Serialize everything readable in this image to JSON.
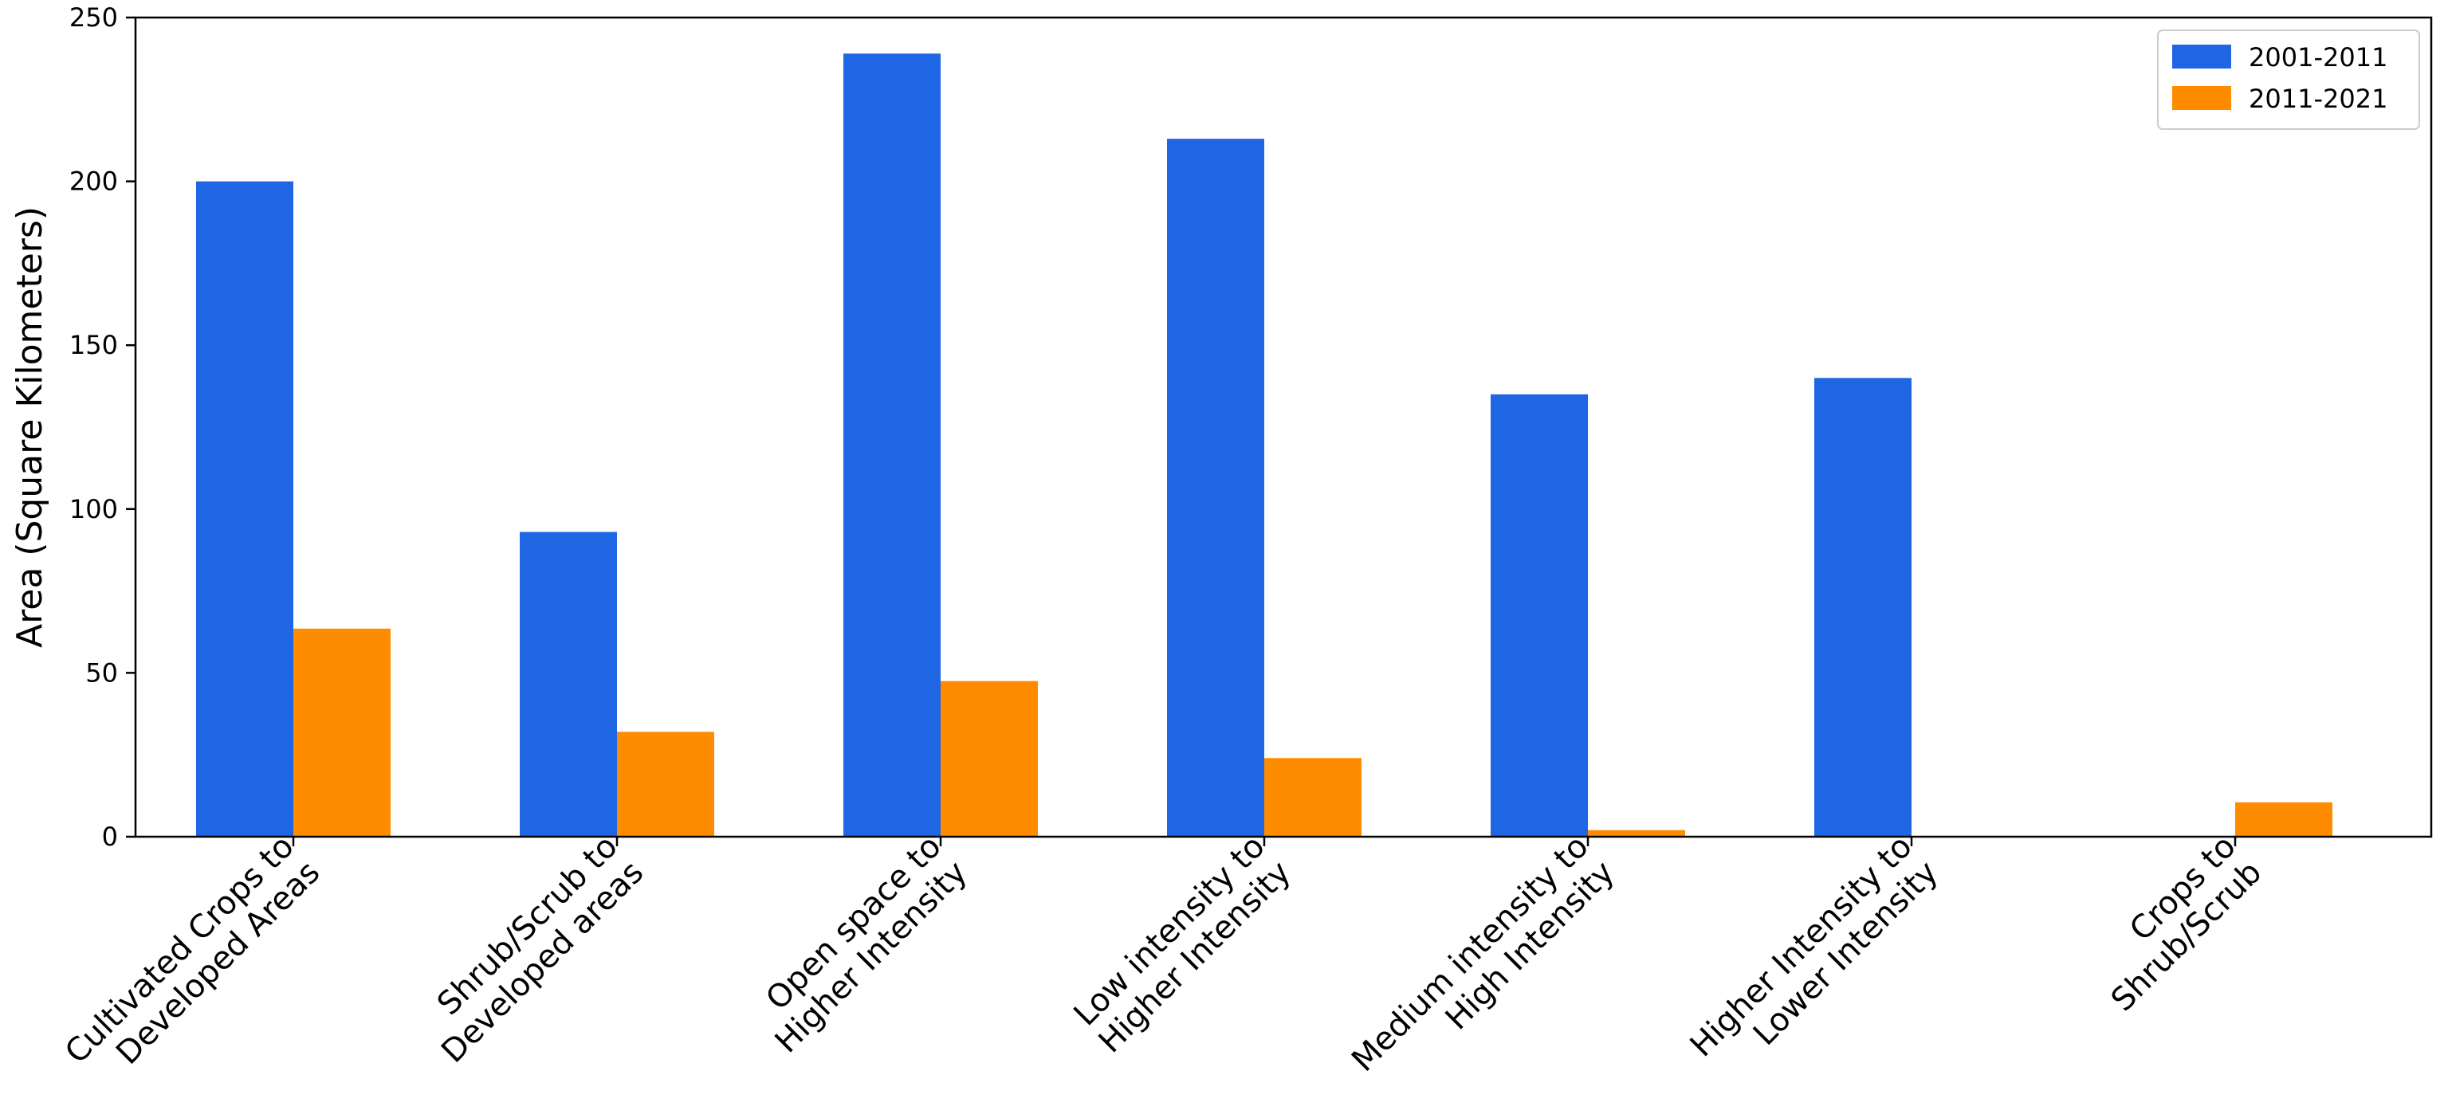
{
  "chart_data": {
    "type": "bar",
    "categories": [
      "Cultivated Crops to\nDeveloped Areas",
      "Shrub/Scrub to\nDeveloped areas",
      "Open space to\nHigher Intensity",
      "Low intensity to\nHigher Intensity",
      "Medium intensity to\nHigh Intensity",
      "Higher Intensity to\nLower Intensity",
      "Crops to\nShrub/Scrub"
    ],
    "series": [
      {
        "name": "2001-2011",
        "color": "#1f66e5",
        "values": [
          200,
          93,
          239,
          213,
          135,
          140,
          0
        ]
      },
      {
        "name": "2011-2021",
        "color": "#ff8c00",
        "values": [
          63.5,
          32,
          47.5,
          24,
          2,
          0,
          10.5
        ]
      }
    ],
    "ylabel": "Area (Square Kilometers)",
    "xlabel": "",
    "ylim": [
      0,
      250
    ],
    "yticks": [
      0,
      50,
      100,
      150,
      200,
      250
    ],
    "grid": false,
    "legend_position": "top-right"
  }
}
